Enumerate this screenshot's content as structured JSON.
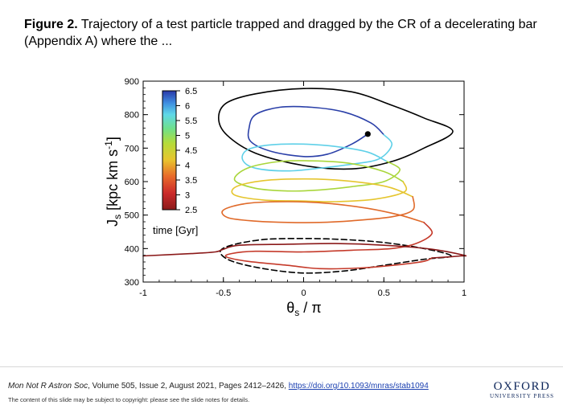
{
  "caption": {
    "label": "Figure 2.",
    "text": " Trajectory of a test particle trapped and dragged by the CR of a decelerating bar (Appendix A) where the ..."
  },
  "footer": {
    "journal": "Mon Not R Astron Soc",
    "details": ", Volume 505, Issue 2, August 2021, Pages 2412–2426, ",
    "doi": "https://doi.org/10.1093/mnras/stab1094",
    "copyright": "The content of this slide may be subject to copyright: please see the slide notes for details.",
    "logo_line1": "OXFORD",
    "logo_line2": "UNIVERSITY PRESS"
  },
  "chart_data": {
    "type": "line",
    "xlabel": "θs / π",
    "ylabel": "Js [kpc km s-1]",
    "xlim": [
      -1,
      1
    ],
    "ylim": [
      300,
      900
    ],
    "x_ticks": [
      -1,
      -0.5,
      0,
      0.5,
      1
    ],
    "x_tick_labels": [
      "-1",
      "-0.5",
      "0",
      "0.5",
      "1"
    ],
    "y_ticks": [
      300,
      400,
      500,
      600,
      700,
      800,
      900
    ],
    "y_tick_labels": [
      "300",
      "400",
      "500",
      "600",
      "700",
      "800",
      "900"
    ],
    "colorbar": {
      "label": "time [Gyr]",
      "range": [
        2.5,
        6.5
      ],
      "ticks": [
        "6.5",
        "6",
        "5.5",
        "5",
        "4.5",
        "4",
        "3.5",
        "3",
        "2.5"
      ],
      "tick_values": [
        6.5,
        6,
        5.5,
        5,
        4.5,
        4,
        3.5,
        3,
        2.5
      ]
    },
    "colors": {
      "t2.5": "#8b1a1a",
      "t3": "#c53a2a",
      "t3.5": "#e06a2a",
      "t4": "#e5c52e",
      "t4.5": "#a9d63b",
      "t5": "#6fe0a8",
      "t5.5": "#5fd0e8",
      "t6": "#3f7fdc",
      "t6.5": "#2a3fa8"
    },
    "series": [
      {
        "type": "separatrix",
        "style": "solid-black",
        "points": [
          [
            0.93,
            750
          ],
          [
            0.75,
            790
          ],
          [
            0.55,
            828
          ],
          [
            0.3,
            868
          ],
          [
            0.0,
            878
          ],
          [
            -0.3,
            862
          ],
          [
            -0.48,
            835
          ],
          [
            -0.53,
            790
          ],
          [
            -0.48,
            740
          ],
          [
            -0.3,
            685
          ],
          [
            0.0,
            648
          ],
          [
            0.3,
            638
          ],
          [
            0.55,
            660
          ],
          [
            0.75,
            700
          ],
          [
            0.93,
            750
          ]
        ]
      },
      {
        "type": "separatrix",
        "style": "dashed-black",
        "points": [
          [
            0.92,
            378
          ],
          [
            0.75,
            400
          ],
          [
            0.5,
            418
          ],
          [
            0.25,
            427
          ],
          [
            0.0,
            430
          ],
          [
            -0.25,
            427
          ],
          [
            -0.45,
            410
          ],
          [
            -0.52,
            390
          ],
          [
            -0.45,
            363
          ],
          [
            -0.25,
            340
          ],
          [
            0.0,
            327
          ],
          [
            0.25,
            333
          ],
          [
            0.5,
            350
          ],
          [
            0.75,
            368
          ],
          [
            0.92,
            378
          ]
        ]
      },
      {
        "type": "trajectory",
        "color": "#2a3fa8",
        "points": [
          [
            0.4,
            742
          ],
          [
            0.3,
            712
          ],
          [
            0.15,
            682
          ],
          [
            0.0,
            675
          ],
          [
            -0.2,
            690
          ],
          [
            -0.33,
            720
          ],
          [
            -0.34,
            760
          ],
          [
            -0.3,
            800
          ],
          [
            -0.15,
            822
          ],
          [
            0.05,
            822
          ],
          [
            0.25,
            808
          ],
          [
            0.42,
            775
          ],
          [
            0.5,
            740
          ]
        ]
      },
      {
        "type": "trajectory",
        "color": "#5fd0e8",
        "points": [
          [
            0.5,
            740
          ],
          [
            0.55,
            710
          ],
          [
            0.47,
            668
          ],
          [
            0.3,
            652
          ],
          [
            0.1,
            640
          ],
          [
            -0.1,
            632
          ],
          [
            -0.3,
            640
          ],
          [
            -0.38,
            665
          ],
          [
            -0.35,
            695
          ],
          [
            -0.2,
            710
          ],
          [
            0.0,
            712
          ],
          [
            0.2,
            705
          ],
          [
            0.4,
            688
          ],
          [
            0.52,
            660
          ]
        ]
      },
      {
        "type": "trajectory",
        "color": "#a9d63b",
        "points": [
          [
            0.52,
            660
          ],
          [
            0.6,
            635
          ],
          [
            0.5,
            600
          ],
          [
            0.3,
            585
          ],
          [
            0.1,
            575
          ],
          [
            -0.1,
            572
          ],
          [
            -0.3,
            580
          ],
          [
            -0.43,
            605
          ],
          [
            -0.35,
            640
          ],
          [
            -0.15,
            660
          ],
          [
            0.05,
            662
          ],
          [
            0.28,
            655
          ],
          [
            0.5,
            630
          ],
          [
            0.62,
            600
          ]
        ]
      },
      {
        "type": "trajectory",
        "color": "#e5c52e",
        "points": [
          [
            0.62,
            600
          ],
          [
            0.63,
            570
          ],
          [
            0.45,
            548
          ],
          [
            0.2,
            540
          ],
          [
            0.0,
            542
          ],
          [
            -0.25,
            545
          ],
          [
            -0.43,
            560
          ],
          [
            -0.42,
            585
          ],
          [
            -0.25,
            603
          ],
          [
            0.0,
            608
          ],
          [
            0.25,
            603
          ],
          [
            0.52,
            585
          ],
          [
            0.68,
            555
          ]
        ]
      },
      {
        "type": "trajectory",
        "color": "#e06a2a",
        "points": [
          [
            0.68,
            555
          ],
          [
            0.68,
            515
          ],
          [
            0.55,
            495
          ],
          [
            0.3,
            483
          ],
          [
            0.1,
            478
          ],
          [
            -0.1,
            478
          ],
          [
            -0.3,
            482
          ],
          [
            -0.47,
            492
          ],
          [
            -0.5,
            515
          ],
          [
            -0.35,
            535
          ],
          [
            -0.1,
            540
          ],
          [
            0.15,
            535
          ],
          [
            0.4,
            520
          ],
          [
            0.6,
            500
          ],
          [
            0.75,
            478
          ]
        ]
      },
      {
        "type": "trajectory",
        "color": "#c53a2a",
        "points": [
          [
            0.75,
            478
          ],
          [
            0.8,
            445
          ],
          [
            0.7,
            415
          ],
          [
            0.55,
            400
          ],
          [
            0.3,
            395
          ],
          [
            0.0,
            390
          ],
          [
            -0.3,
            392
          ],
          [
            -0.45,
            385
          ],
          [
            -0.48,
            375
          ],
          [
            -0.35,
            362
          ],
          [
            -0.1,
            350
          ],
          [
            0.1,
            340
          ],
          [
            0.35,
            342
          ],
          [
            0.6,
            352
          ],
          [
            0.75,
            362
          ],
          [
            0.8,
            372
          ]
        ]
      },
      {
        "type": "trajectory",
        "color": "#8b1a1a",
        "points": [
          [
            0.8,
            372
          ],
          [
            0.9,
            375
          ],
          [
            0.98,
            378
          ],
          [
            1.0,
            380
          ],
          [
            0.8,
            398
          ],
          [
            0.5,
            410
          ],
          [
            0.2,
            415
          ],
          [
            -0.1,
            413
          ],
          [
            -0.4,
            410
          ],
          [
            -0.5,
            398
          ],
          [
            -0.55,
            390
          ],
          [
            -0.7,
            385
          ],
          [
            -1.0,
            378
          ]
        ]
      }
    ],
    "start_marker": {
      "x": 0.4,
      "y": 742,
      "color": "#000000"
    }
  }
}
